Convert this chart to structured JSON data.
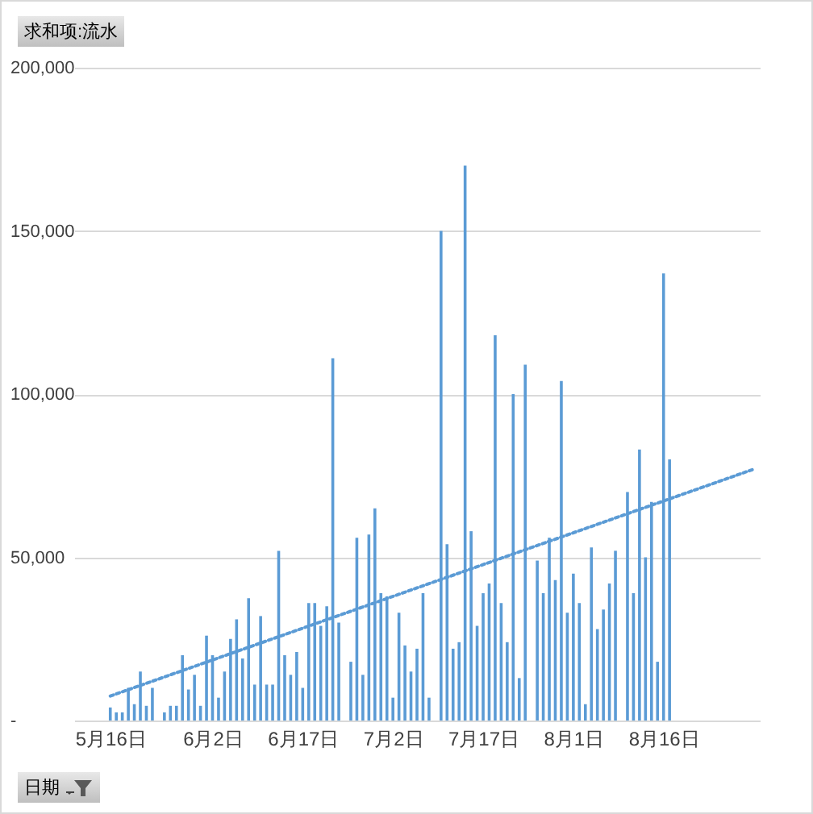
{
  "chart_data": {
    "type": "bar",
    "xlabel": "日期",
    "ylabel": "求和项:流水",
    "xlim": [
      "--05-10",
      "--09-01"
    ],
    "xticks": [
      {
        "value": "--05-16",
        "label": "5月16日"
      },
      {
        "value": "--06-02",
        "label": "6月2日"
      },
      {
        "value": "--06-17",
        "label": "6月17日"
      },
      {
        "value": "--07-02",
        "label": "7月2日"
      },
      {
        "value": "--07-17",
        "label": "7月17日"
      },
      {
        "value": "--08-01",
        "label": "8月1日"
      },
      {
        "value": "--08-16",
        "label": "8月16日"
      }
    ],
    "ylim": [
      0,
      200000
    ],
    "yticks": [
      {
        "value": 0,
        "label": "-"
      },
      {
        "value": 50000,
        "label": "50,000"
      },
      {
        "value": 100000,
        "label": "100,000"
      },
      {
        "value": 150000,
        "label": "150,000"
      },
      {
        "value": 200000,
        "label": "200,000"
      }
    ],
    "grid": "y",
    "series": [
      {
        "color": "#5b9bd5",
        "x": [
          "--05-16",
          "--05-17",
          "--05-18",
          "--05-19",
          "--05-20",
          "--05-21",
          "--05-22",
          "--05-23",
          "--05-25",
          "--05-26",
          "--05-27",
          "--05-28",
          "--05-29",
          "--05-30",
          "--05-31",
          "--06-01",
          "--06-02",
          "--06-03",
          "--06-04",
          "--06-05",
          "--06-06",
          "--06-07",
          "--06-08",
          "--06-09",
          "--06-10",
          "--06-11",
          "--06-12",
          "--06-13",
          "--06-14",
          "--06-15",
          "--06-16",
          "--06-17",
          "--06-18",
          "--06-19",
          "--06-20",
          "--06-21",
          "--06-22",
          "--06-23",
          "--06-25",
          "--06-26",
          "--06-27",
          "--06-28",
          "--06-29",
          "--06-30",
          "--07-01",
          "--07-02",
          "--07-03",
          "--07-04",
          "--07-05",
          "--07-06",
          "--07-07",
          "--07-08",
          "--07-10",
          "--07-11",
          "--07-12",
          "--07-13",
          "--07-14",
          "--07-15",
          "--07-16",
          "--07-17",
          "--07-18",
          "--07-19",
          "--07-20",
          "--07-21",
          "--07-22",
          "--07-23",
          "--07-24",
          "--07-26",
          "--07-27",
          "--07-28",
          "--07-29",
          "--07-30",
          "--07-31",
          "--08-01",
          "--08-02",
          "--08-03",
          "--08-04",
          "--08-05",
          "--08-06",
          "--08-07",
          "--08-08",
          "--08-10",
          "--08-11",
          "--08-12",
          "--08-13",
          "--08-14",
          "--08-15",
          "--08-16",
          "--08-17"
        ],
        "values": [
          4000,
          2500,
          2500,
          10000,
          5000,
          15000,
          4500,
          10000,
          2500,
          4500,
          4500,
          20000,
          9500,
          14000,
          4500,
          26000,
          20000,
          7000,
          15000,
          25000,
          31000,
          19000,
          37500,
          11000,
          32000,
          11000,
          11000,
          52000,
          20000,
          14000,
          21000,
          10000,
          36000,
          36000,
          29000,
          35000,
          111000,
          30000,
          18000,
          56000,
          14000,
          57000,
          65000,
          39000,
          38000,
          7000,
          33000,
          23000,
          15000,
          22000,
          39000,
          7000,
          150000,
          54000,
          22000,
          24000,
          170000,
          58000,
          29000,
          39000,
          42000,
          118000,
          36000,
          24000,
          100000,
          13000,
          109000,
          49000,
          39000,
          56000,
          43000,
          104000,
          33000,
          45000,
          36000,
          5000,
          53000,
          28000,
          34000,
          42000,
          52000,
          70000,
          39000,
          83000,
          50000,
          67000,
          18000,
          137000,
          80000
        ]
      },
      {
        "type": "line",
        "color": "#5b9bd5",
        "line_style": "dotted",
        "x": [
          "--05-16",
          "--08-31"
        ],
        "values": [
          7500,
          77000
        ]
      }
    ]
  }
}
